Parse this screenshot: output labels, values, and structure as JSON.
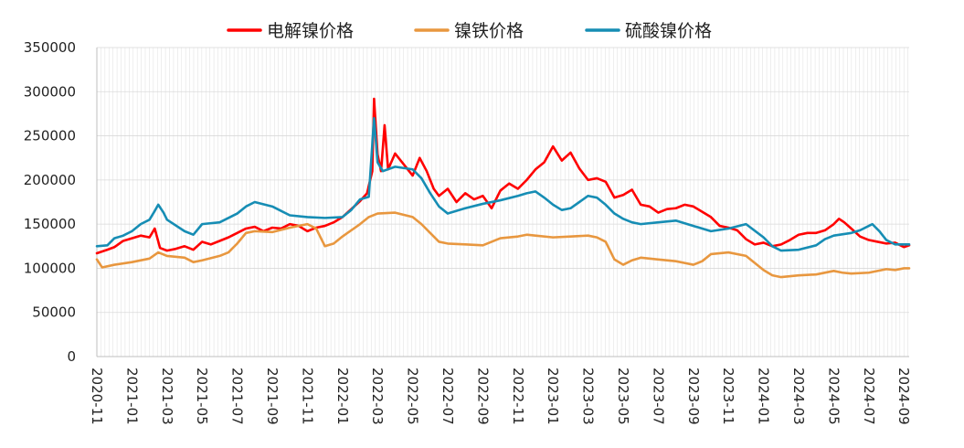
{
  "chart_data": {
    "type": "line",
    "title": "",
    "xlabel": "",
    "ylabel": "",
    "ylim": [
      0,
      350000
    ],
    "y_ticks": [
      "0",
      "50000",
      "100000",
      "150000",
      "200000",
      "250000",
      "300000",
      "350000"
    ],
    "x_ticks": [
      "2020-11",
      "2021-01",
      "2021-03",
      "2021-05",
      "2021-07",
      "2021-09",
      "2021-11",
      "2022-01",
      "2022-03",
      "2022-05",
      "2022-07",
      "2022-09",
      "2022-11",
      "2023-01",
      "2023-03",
      "2023-05",
      "2023-07",
      "2023-09",
      "2023-11",
      "2024-01",
      "2024-03",
      "2024-05",
      "2024-07",
      "2024-09"
    ],
    "x_range_months": [
      0,
      46.3
    ],
    "grid": "vertical weekly lines and horizontal lines",
    "legend_position": "top",
    "series": [
      {
        "name": "电解镍价格",
        "color": "#ff0000",
        "points": [
          [
            0,
            117000
          ],
          [
            0.6,
            121000
          ],
          [
            1,
            124000
          ],
          [
            1.5,
            131000
          ],
          [
            2,
            134000
          ],
          [
            2.5,
            137000
          ],
          [
            3,
            135000
          ],
          [
            3.3,
            145000
          ],
          [
            3.6,
            123000
          ],
          [
            4,
            120000
          ],
          [
            4.5,
            122000
          ],
          [
            5,
            125000
          ],
          [
            5.5,
            121000
          ],
          [
            6,
            130000
          ],
          [
            6.5,
            127000
          ],
          [
            7,
            131000
          ],
          [
            7.5,
            135000
          ],
          [
            8,
            140000
          ],
          [
            8.5,
            145000
          ],
          [
            9,
            147000
          ],
          [
            9.5,
            142000
          ],
          [
            10,
            146000
          ],
          [
            10.5,
            145000
          ],
          [
            11,
            150000
          ],
          [
            11.5,
            148000
          ],
          [
            12,
            142000
          ],
          [
            12.5,
            146000
          ],
          [
            13,
            148000
          ],
          [
            13.5,
            152000
          ],
          [
            14,
            158000
          ],
          [
            14.5,
            167000
          ],
          [
            15,
            176000
          ],
          [
            15.4,
            185000
          ],
          [
            15.7,
            210000
          ],
          [
            15.8,
            292000
          ],
          [
            16,
            229000
          ],
          [
            16.2,
            210000
          ],
          [
            16.4,
            262000
          ],
          [
            16.6,
            212000
          ],
          [
            17,
            230000
          ],
          [
            17.4,
            220000
          ],
          [
            18,
            205000
          ],
          [
            18.4,
            225000
          ],
          [
            18.8,
            210000
          ],
          [
            19.2,
            190000
          ],
          [
            19.5,
            182000
          ],
          [
            20,
            190000
          ],
          [
            20.5,
            175000
          ],
          [
            21,
            185000
          ],
          [
            21.5,
            178000
          ],
          [
            22,
            182000
          ],
          [
            22.5,
            168000
          ],
          [
            23,
            188000
          ],
          [
            23.5,
            196000
          ],
          [
            24,
            190000
          ],
          [
            24.5,
            200000
          ],
          [
            25,
            212000
          ],
          [
            25.5,
            220000
          ],
          [
            26,
            238000
          ],
          [
            26.5,
            222000
          ],
          [
            27,
            231000
          ],
          [
            27.5,
            213000
          ],
          [
            28,
            200000
          ],
          [
            28.5,
            202000
          ],
          [
            29,
            198000
          ],
          [
            29.5,
            180000
          ],
          [
            30,
            183000
          ],
          [
            30.5,
            189000
          ],
          [
            31,
            172000
          ],
          [
            31.5,
            170000
          ],
          [
            32,
            163000
          ],
          [
            32.5,
            167000
          ],
          [
            33,
            168000
          ],
          [
            33.5,
            172000
          ],
          [
            34,
            170000
          ],
          [
            34.5,
            164000
          ],
          [
            35,
            158000
          ],
          [
            35.5,
            148000
          ],
          [
            36,
            146000
          ],
          [
            36.5,
            143000
          ],
          [
            37,
            133000
          ],
          [
            37.5,
            127000
          ],
          [
            38,
            129000
          ],
          [
            38.5,
            125000
          ],
          [
            39,
            127000
          ],
          [
            39.5,
            132000
          ],
          [
            40,
            138000
          ],
          [
            40.5,
            140000
          ],
          [
            41,
            140000
          ],
          [
            41.5,
            143000
          ],
          [
            42,
            150000
          ],
          [
            42.3,
            156000
          ],
          [
            42.6,
            152000
          ],
          [
            43,
            145000
          ],
          [
            43.5,
            136000
          ],
          [
            44,
            132000
          ],
          [
            44.5,
            130000
          ],
          [
            45,
            128000
          ],
          [
            45.5,
            129000
          ],
          [
            46,
            124000
          ],
          [
            46.3,
            126000
          ]
        ]
      },
      {
        "name": "镍铁价格",
        "color": "#e8973f",
        "points": [
          [
            0,
            110000
          ],
          [
            0.3,
            101000
          ],
          [
            1,
            104000
          ],
          [
            2,
            107000
          ],
          [
            3,
            111000
          ],
          [
            3.5,
            118000
          ],
          [
            4,
            114000
          ],
          [
            5,
            112000
          ],
          [
            5.5,
            107000
          ],
          [
            6,
            109000
          ],
          [
            7,
            114000
          ],
          [
            7.5,
            118000
          ],
          [
            8,
            128000
          ],
          [
            8.5,
            140000
          ],
          [
            9,
            142000
          ],
          [
            10,
            141000
          ],
          [
            11,
            146000
          ],
          [
            12,
            150000
          ],
          [
            12.5,
            145000
          ],
          [
            13,
            125000
          ],
          [
            13.5,
            128000
          ],
          [
            14,
            136000
          ],
          [
            15,
            150000
          ],
          [
            15.5,
            158000
          ],
          [
            16,
            162000
          ],
          [
            17,
            163000
          ],
          [
            18,
            158000
          ],
          [
            18.5,
            150000
          ],
          [
            19,
            140000
          ],
          [
            19.5,
            130000
          ],
          [
            20,
            128000
          ],
          [
            21,
            127000
          ],
          [
            22,
            126000
          ],
          [
            22.5,
            130000
          ],
          [
            23,
            134000
          ],
          [
            24,
            136000
          ],
          [
            24.5,
            138000
          ],
          [
            25,
            137000
          ],
          [
            26,
            135000
          ],
          [
            27,
            136000
          ],
          [
            28,
            137000
          ],
          [
            28.5,
            135000
          ],
          [
            29,
            130000
          ],
          [
            29.5,
            110000
          ],
          [
            30,
            104000
          ],
          [
            30.5,
            109000
          ],
          [
            31,
            112000
          ],
          [
            32,
            110000
          ],
          [
            33,
            108000
          ],
          [
            33.5,
            106000
          ],
          [
            34,
            104000
          ],
          [
            34.5,
            108000
          ],
          [
            35,
            116000
          ],
          [
            36,
            118000
          ],
          [
            37,
            114000
          ],
          [
            37.5,
            106000
          ],
          [
            38,
            98000
          ],
          [
            38.5,
            92000
          ],
          [
            39,
            90000
          ],
          [
            40,
            92000
          ],
          [
            41,
            93000
          ],
          [
            42,
            97000
          ],
          [
            42.5,
            95000
          ],
          [
            43,
            94000
          ],
          [
            44,
            95000
          ],
          [
            45,
            99000
          ],
          [
            45.5,
            98000
          ],
          [
            46,
            100000
          ],
          [
            46.3,
            100000
          ]
        ]
      },
      {
        "name": "硫酸镍价格",
        "color": "#168db4",
        "points": [
          [
            0,
            125000
          ],
          [
            0.6,
            126000
          ],
          [
            1,
            134000
          ],
          [
            1.5,
            137000
          ],
          [
            2,
            142000
          ],
          [
            2.5,
            150000
          ],
          [
            3,
            155000
          ],
          [
            3.3,
            165000
          ],
          [
            3.5,
            172000
          ],
          [
            3.8,
            163000
          ],
          [
            4,
            155000
          ],
          [
            5,
            142000
          ],
          [
            5.5,
            138000
          ],
          [
            6,
            150000
          ],
          [
            7,
            152000
          ],
          [
            8,
            162000
          ],
          [
            8.5,
            170000
          ],
          [
            9,
            175000
          ],
          [
            10,
            170000
          ],
          [
            10.5,
            165000
          ],
          [
            11,
            160000
          ],
          [
            12,
            158000
          ],
          [
            13,
            157000
          ],
          [
            14,
            158000
          ],
          [
            14.5,
            166000
          ],
          [
            15,
            178000
          ],
          [
            15.5,
            181000
          ],
          [
            15.8,
            270000
          ],
          [
            16,
            220000
          ],
          [
            16.3,
            210000
          ],
          [
            17,
            215000
          ],
          [
            18,
            212000
          ],
          [
            18.5,
            202000
          ],
          [
            19,
            185000
          ],
          [
            19.5,
            170000
          ],
          [
            20,
            162000
          ],
          [
            21,
            168000
          ],
          [
            22,
            173000
          ],
          [
            23,
            177000
          ],
          [
            24,
            182000
          ],
          [
            24.5,
            185000
          ],
          [
            25,
            187000
          ],
          [
            25.5,
            180000
          ],
          [
            26,
            172000
          ],
          [
            26.5,
            166000
          ],
          [
            27,
            168000
          ],
          [
            27.5,
            175000
          ],
          [
            28,
            182000
          ],
          [
            28.5,
            180000
          ],
          [
            29,
            172000
          ],
          [
            29.5,
            162000
          ],
          [
            30,
            156000
          ],
          [
            30.5,
            152000
          ],
          [
            31,
            150000
          ],
          [
            32,
            152000
          ],
          [
            33,
            154000
          ],
          [
            34,
            148000
          ],
          [
            35,
            142000
          ],
          [
            36,
            145000
          ],
          [
            37,
            150000
          ],
          [
            38,
            135000
          ],
          [
            38.5,
            125000
          ],
          [
            39,
            120000
          ],
          [
            40,
            121000
          ],
          [
            41,
            126000
          ],
          [
            41.5,
            133000
          ],
          [
            42,
            137000
          ],
          [
            43,
            140000
          ],
          [
            43.5,
            143000
          ],
          [
            44,
            148000
          ],
          [
            44.2,
            150000
          ],
          [
            44.6,
            142000
          ],
          [
            45,
            132000
          ],
          [
            45.5,
            127000
          ],
          [
            46,
            127000
          ],
          [
            46.3,
            127000
          ]
        ]
      }
    ]
  }
}
